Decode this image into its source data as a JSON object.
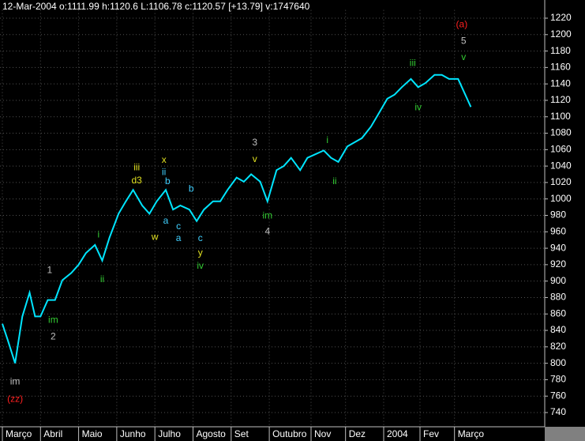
{
  "chart_data": {
    "type": "line",
    "title": "12-Mar-2004  o:1111.99 h:1120.6 L:1106.78 c:1120.57 [+13.79] v:1747640",
    "color": "#00e5ff",
    "grid": true,
    "x": [
      0,
      3,
      7,
      11,
      15,
      18,
      21,
      25,
      29,
      33,
      38,
      42,
      46,
      51,
      55,
      59,
      64,
      68,
      72,
      77,
      81,
      85,
      90,
      94,
      98,
      103,
      107,
      111,
      116,
      120,
      124,
      129,
      133,
      137,
      142,
      146,
      151,
      155,
      159,
      164,
      168,
      172,
      177,
      181,
      185,
      190,
      194,
      198,
      203,
      207,
      212,
      216,
      220,
      225,
      229,
      233,
      238,
      242,
      246,
      251,
      258
    ],
    "values": [
      848,
      828,
      800,
      857,
      886,
      857,
      857,
      877,
      877,
      901,
      910,
      920,
      934,
      944,
      925,
      953,
      982,
      997,
      1011,
      992,
      982,
      997,
      1011,
      987,
      992,
      987,
      973,
      987,
      997,
      997,
      1011,
      1026,
      1021,
      1030,
      1021,
      997,
      1035,
      1040,
      1050,
      1035,
      1050,
      1054,
      1059,
      1050,
      1045,
      1064,
      1069,
      1074,
      1088,
      1103,
      1122,
      1127,
      1136,
      1146,
      1136,
      1141,
      1151,
      1151,
      1146,
      1146,
      1112
    ],
    "xlim": [
      -1.3,
      298.7
    ],
    "xticks": [
      {
        "value": 0,
        "label": "Março"
      },
      {
        "value": 21,
        "label": "Abril"
      },
      {
        "value": 42,
        "label": "Maio"
      },
      {
        "value": 63,
        "label": "Junho"
      },
      {
        "value": 84,
        "label": "Julho"
      },
      {
        "value": 105,
        "label": "Agosto"
      },
      {
        "value": 126,
        "label": "Set"
      },
      {
        "value": 147,
        "label": "Outubro"
      },
      {
        "value": 170,
        "label": "Nov"
      },
      {
        "value": 189,
        "label": "Dez"
      },
      {
        "value": 210,
        "label": "2004"
      },
      {
        "value": 230,
        "label": "Fev"
      },
      {
        "value": 249,
        "label": "Março"
      }
    ],
    "ylim": [
      725,
      1230
    ],
    "yticks": [
      740,
      760,
      780,
      800,
      820,
      840,
      860,
      880,
      900,
      920,
      940,
      960,
      980,
      1000,
      1020,
      1040,
      1060,
      1080,
      1100,
      1120,
      1140,
      1160,
      1180,
      1200,
      1220
    ],
    "annotations": [
      {
        "text": "(zz)",
        "color": "#ff2020",
        "x": 7,
        "y": 756
      },
      {
        "text": "im",
        "color": "#c0c0c0",
        "x": 7,
        "y": 777
      },
      {
        "text": "1",
        "color": "#c0c0c0",
        "x": 26,
        "y": 913
      },
      {
        "text": "im",
        "color": "#33cc33",
        "x": 28,
        "y": 852
      },
      {
        "text": "2",
        "color": "#c0c0c0",
        "x": 28,
        "y": 832
      },
      {
        "text": "i",
        "color": "#33cc33",
        "x": 53,
        "y": 956
      },
      {
        "text": "ii",
        "color": "#33cc33",
        "x": 55,
        "y": 902
      },
      {
        "text": "iii",
        "color": "#e0e020",
        "x": 74,
        "y": 1038
      },
      {
        "text": "d3",
        "color": "#e0e020",
        "x": 74,
        "y": 1022
      },
      {
        "text": "x",
        "color": "#e0e020",
        "x": 89,
        "y": 1047
      },
      {
        "text": "ii",
        "color": "#40d0ff",
        "x": 89,
        "y": 1032
      },
      {
        "text": "b",
        "color": "#40d0ff",
        "x": 91,
        "y": 1021
      },
      {
        "text": "b",
        "color": "#40d0ff",
        "x": 104,
        "y": 1012
      },
      {
        "text": "a",
        "color": "#40d0ff",
        "x": 90,
        "y": 973
      },
      {
        "text": "w",
        "color": "#e0e020",
        "x": 84,
        "y": 953
      },
      {
        "text": "c",
        "color": "#40d0ff",
        "x": 97,
        "y": 966
      },
      {
        "text": "a",
        "color": "#40d0ff",
        "x": 97,
        "y": 952
      },
      {
        "text": "c",
        "color": "#40d0ff",
        "x": 109,
        "y": 952
      },
      {
        "text": "y",
        "color": "#e0e020",
        "x": 109,
        "y": 934
      },
      {
        "text": "iv",
        "color": "#33cc33",
        "x": 109,
        "y": 918
      },
      {
        "text": "3",
        "color": "#c0c0c0",
        "x": 139,
        "y": 1068
      },
      {
        "text": "v",
        "color": "#e0e020",
        "x": 139,
        "y": 1048
      },
      {
        "text": "im",
        "color": "#33cc33",
        "x": 146,
        "y": 979
      },
      {
        "text": "4",
        "color": "#c0c0c0",
        "x": 146,
        "y": 960
      },
      {
        "text": "i",
        "color": "#33cc33",
        "x": 179,
        "y": 1071
      },
      {
        "text": "ii",
        "color": "#33cc33",
        "x": 183,
        "y": 1021
      },
      {
        "text": "iii",
        "color": "#33cc33",
        "x": 226,
        "y": 1165
      },
      {
        "text": "iv",
        "color": "#33cc33",
        "x": 229,
        "y": 1111
      },
      {
        "text": "(a)",
        "color": "#ff2020",
        "x": 253,
        "y": 1212
      },
      {
        "text": "5",
        "color": "#c0c0c0",
        "x": 254,
        "y": 1192
      },
      {
        "text": "v",
        "color": "#33cc33",
        "x": 254,
        "y": 1172
      }
    ]
  }
}
